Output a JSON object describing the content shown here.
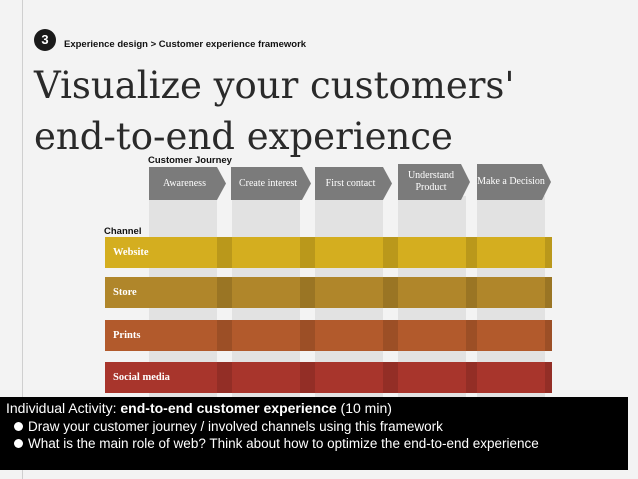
{
  "slide": {
    "number": "3",
    "breadcrumb": "Experience design > Customer experience framework",
    "title_line1": "Visualize your customers'",
    "title_line2": "end-to-end experience"
  },
  "framework": {
    "journey_label": "Customer Journey",
    "channel_label": "Channel",
    "stages": [
      "Awareness",
      "Create interest",
      "First contact",
      "Understand Product",
      "Make a Decision"
    ],
    "channels": [
      {
        "label": "Website",
        "color": "#d4ae1f"
      },
      {
        "label": "Store",
        "color": "#b0862a"
      },
      {
        "label": "Prints",
        "color": "#b25a2c"
      },
      {
        "label": "Social media",
        "color": "#a8352c"
      }
    ],
    "stage_color": "#7b7b7b",
    "column_color": "#e2e2e2"
  },
  "activity": {
    "prefix": "Individual Activity: ",
    "title": "end-to-end customer experience",
    "suffix": " (10 min)",
    "bullets": [
      "Draw your customer journey / involved channels using this framework",
      "What is the main role of web? Think about how to optimize the end-to-end experience"
    ]
  }
}
